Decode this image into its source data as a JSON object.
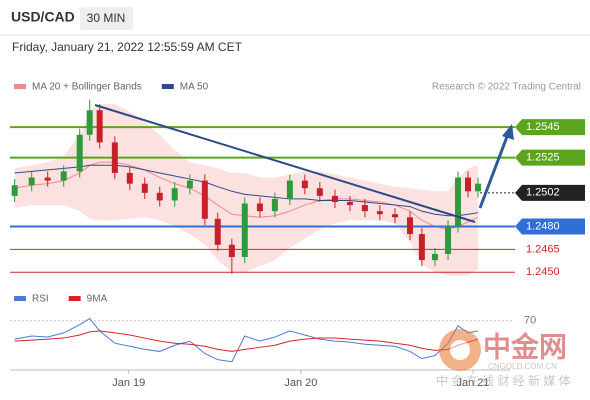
{
  "header": {
    "symbol": "USD/CAD",
    "interval": "30 MIN",
    "datetime": "Friday, January 21, 2022 12:55:59 AM CET"
  },
  "chart_data": {
    "type": "candlestick",
    "legend": [
      {
        "name": "MA 20 + Bollinger Bands",
        "color": "#f08a8a"
      },
      {
        "name": "MA 50",
        "color": "#2c4a8a"
      }
    ],
    "credit": "Research © 2022 Trading Central",
    "up_color": "#2e9a3c",
    "down_color": "#c8202a",
    "x": [
      -0.663,
      -0.564,
      -0.471,
      -0.378,
      -0.285,
      -0.227,
      -0.169,
      -0.081,
      0.006,
      0.093,
      0.18,
      0.267,
      0.355,
      0.442,
      0.517,
      0.599,
      0.674,
      0.762,
      0.849,
      0.936,
      1.023,
      1.11,
      1.198,
      1.285,
      1.372,
      1.459,
      1.547,
      1.634,
      1.703,
      1.779,
      1.855,
      1.913,
      1.971,
      2.029
    ],
    "open": [
      1.25,
      1.2507,
      1.2512,
      1.251,
      1.2516,
      1.254,
      1.2556,
      1.2535,
      1.2515,
      1.2508,
      1.2502,
      1.2497,
      1.2505,
      1.251,
      1.2485,
      1.2468,
      1.246,
      1.2495,
      1.249,
      1.2498,
      1.251,
      1.2505,
      1.25,
      1.2496,
      1.2494,
      1.249,
      1.2488,
      1.2486,
      1.2475,
      1.2458,
      1.2462,
      1.248,
      1.2512,
      1.2503
    ],
    "high": [
      1.2511,
      1.2516,
      1.2516,
      1.252,
      1.2544,
      1.2563,
      1.256,
      1.2539,
      1.2519,
      1.2512,
      1.2506,
      1.2509,
      1.2514,
      1.2514,
      1.2489,
      1.2472,
      1.2499,
      1.2499,
      1.2502,
      1.2514,
      1.2514,
      1.2509,
      1.2504,
      1.25,
      1.2498,
      1.2494,
      1.2492,
      1.249,
      1.2479,
      1.2466,
      1.2484,
      1.2516,
      1.2516,
      1.2512
    ],
    "low": [
      1.2496,
      1.2503,
      1.2506,
      1.2506,
      1.2512,
      1.2536,
      1.2531,
      1.2511,
      1.2504,
      1.2498,
      1.2493,
      1.2493,
      1.2501,
      1.2481,
      1.2464,
      1.2449,
      1.2456,
      1.2486,
      1.2486,
      1.2494,
      1.2501,
      1.2496,
      1.2492,
      1.249,
      1.2486,
      1.2484,
      1.2482,
      1.2471,
      1.2454,
      1.2454,
      1.2458,
      1.2476,
      1.2499,
      1.2499
    ],
    "close": [
      1.2507,
      1.2512,
      1.251,
      1.2516,
      1.254,
      1.2556,
      1.2535,
      1.2515,
      1.2508,
      1.2502,
      1.2497,
      1.2505,
      1.251,
      1.2485,
      1.2468,
      1.246,
      1.2495,
      1.249,
      1.2498,
      1.251,
      1.2505,
      1.25,
      1.2496,
      1.2494,
      1.249,
      1.2488,
      1.2486,
      1.2475,
      1.2458,
      1.2462,
      1.248,
      1.2512,
      1.2503,
      1.2508
    ],
    "ma20": [
      1.2505,
      1.2507,
      1.2508,
      1.251,
      1.2515,
      1.252,
      1.2522,
      1.2522,
      1.252,
      1.2517,
      1.2512,
      1.2508,
      1.2505,
      1.25,
      1.2494,
      1.2488,
      1.2487,
      1.2486,
      1.2487,
      1.249,
      1.2494,
      1.2497,
      1.2498,
      1.2498,
      1.2497,
      1.2496,
      1.2494,
      1.249,
      1.2484,
      1.248,
      1.2478,
      1.248,
      1.2483,
      1.2486
    ],
    "bb_upper": [
      1.2518,
      1.252,
      1.2522,
      1.2526,
      1.254,
      1.2555,
      1.256,
      1.256,
      1.2555,
      1.2548,
      1.254,
      1.253,
      1.2522,
      1.252,
      1.2518,
      1.2515,
      1.2515,
      1.2512,
      1.2512,
      1.2514,
      1.2516,
      1.2516,
      1.2514,
      1.2512,
      1.251,
      1.2508,
      1.2506,
      1.2505,
      1.2504,
      1.2503,
      1.2503,
      1.2512,
      1.2518,
      1.252
    ],
    "bb_lower": [
      1.2492,
      1.2494,
      1.2494,
      1.2494,
      1.249,
      1.2485,
      1.2484,
      1.2484,
      1.2485,
      1.2486,
      1.2484,
      1.248,
      1.2475,
      1.2468,
      1.2458,
      1.245,
      1.245,
      1.2454,
      1.2458,
      1.2466,
      1.2472,
      1.2478,
      1.2482,
      1.2484,
      1.2484,
      1.2484,
      1.2482,
      1.247,
      1.2455,
      1.245,
      1.2448,
      1.2448,
      1.2448,
      1.2452
    ],
    "ma50": [
      1.2515,
      1.2516,
      1.2517,
      1.2518,
      1.2519,
      1.252,
      1.252,
      1.252,
      1.2519,
      1.2517,
      1.2515,
      1.2513,
      1.2511,
      1.2509,
      1.2506,
      1.2503,
      1.2501,
      1.25,
      1.2499,
      1.2498,
      1.2498,
      1.2497,
      1.2497,
      1.2497,
      1.2496,
      1.2495,
      1.2494,
      1.2493,
      1.249,
      1.2488,
      1.2487,
      1.2487,
      1.2488,
      1.2489
    ],
    "xlim": [
      -0.69,
      2.215
    ],
    "xticks": [
      {
        "value": 0,
        "label": "Jan 19"
      },
      {
        "value": 1,
        "label": "Jan 20"
      },
      {
        "value": 2,
        "label": "Jan 21"
      }
    ],
    "ylim": [
      1.2443,
      1.2566
    ],
    "yticks": [
      1.2545,
      1.2525,
      1.2502,
      {
        "value": 1.248,
        "label": "1.2480"
      },
      1.2465,
      {
        "value": 1.245,
        "label": "1.2450"
      }
    ],
    "level_colors": [
      "#5ba41e",
      "#5ba41e",
      "#222222",
      "#2f6fd6",
      "#d8232a",
      "#d8232a"
    ],
    "level_boxed": [
      true,
      true,
      true,
      true,
      false,
      false
    ],
    "level_lines": [
      "solid",
      "solid",
      "dotted",
      "solid",
      "solid",
      "solid"
    ],
    "rsi": {
      "ylim": [
        20,
        90
      ],
      "yticks": [
        70
      ],
      "series": [
        {
          "name": "RSI",
          "color": "#4a7bd8",
          "values": [
            52,
            55,
            54,
            58,
            66,
            72,
            60,
            48,
            45,
            42,
            40,
            46,
            50,
            38,
            32,
            30,
            55,
            50,
            54,
            60,
            56,
            52,
            50,
            49,
            47,
            46,
            45,
            40,
            33,
            36,
            48,
            65,
            58,
            60
          ]
        },
        {
          "name": "9MA",
          "color": "#d8232a",
          "values": [
            50,
            51,
            52,
            53,
            56,
            59,
            60,
            58,
            56,
            53,
            50,
            48,
            47,
            45,
            42,
            40,
            42,
            44,
            46,
            50,
            52,
            53,
            53,
            52,
            51,
            50,
            48,
            46,
            43,
            41,
            42,
            46,
            49,
            52
          ]
        }
      ]
    }
  },
  "watermark": {
    "title": "中金网",
    "url": "CNGOLD.COM.CN",
    "tagline": "中 金 在 线 财 经 新 媒 体"
  }
}
